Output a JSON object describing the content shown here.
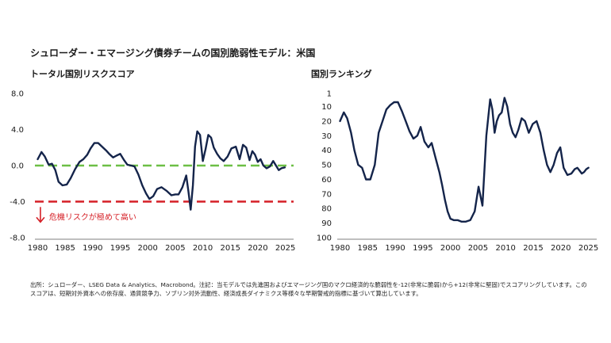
{
  "title": "シュローダー・エマージング債券チームの国別脆弱性モデル：米国",
  "source": [
    "出所：シュローダー、LSEG Data & Analytics、Macrobond。注記：当モデルでは先進国およびエマージング国のマクロ経済的な脆弱性を-12(非常に脆弱)から+12(非常に堅固)でスコアリングしています。この",
    "スコアは、短期対外資本への依存度、通貨競争力、ソブリン対外流動性、経済成長ダイナミクス等様々な早期警戒的指標に基づいて算出しています。"
  ],
  "colors": {
    "line": "#14244a",
    "green_dash": "#6dbf45",
    "red_dash": "#d51f26",
    "annotation": "#d51f26"
  },
  "chart_data": [
    {
      "type": "line",
      "title": "トータル国別リスクスコア",
      "xlabel": "",
      "ylabel": "",
      "xlim": [
        1979.5,
        2026.5
      ],
      "ylim": [
        -8,
        8
      ],
      "x_ticks": [
        1980,
        1985,
        1990,
        1995,
        2000,
        2005,
        2010,
        2015,
        2020,
        2025
      ],
      "y_ticks": [
        "8.0",
        "4.0",
        "0.0",
        "-4.0",
        "-8.0"
      ],
      "y_tick_values": [
        8,
        4,
        0,
        -4,
        -8
      ],
      "reference_lines": [
        {
          "y": 0,
          "color": "#6dbf45",
          "style": "dashed"
        },
        {
          "y": -4,
          "color": "#d51f26",
          "style": "dashed"
        }
      ],
      "annotation": {
        "text": "危機リスクが極めて高い",
        "arrow": "down",
        "at_x": 1980.5,
        "at_y": -4.6
      },
      "series": [
        {
          "x": [
            1980.0,
            1980.7,
            1981.3,
            1982.0,
            1982.6,
            1983.2,
            1983.8,
            1984.5,
            1985.3,
            1986.0,
            1986.8,
            1987.6,
            1988.3,
            1989.0,
            1989.6,
            1990.3,
            1991.0,
            1991.7,
            1992.4,
            1993.0,
            1993.7,
            1994.3,
            1995.0,
            1995.7,
            1996.3,
            1997.0,
            1997.6,
            1998.3,
            1999.0,
            1999.7,
            2000.3,
            2001.0,
            2001.7,
            2002.5,
            2003.4,
            2004.3,
            2005.0,
            2005.6,
            2006.3,
            2007.0,
            2007.4,
            2007.8,
            2008.2,
            2008.6,
            2009.0,
            2009.5,
            2010.0,
            2010.5,
            2011.0,
            2011.5,
            2012.0,
            2012.6,
            2013.2,
            2013.8,
            2014.5,
            2015.2,
            2016.0,
            2016.7,
            2017.3,
            2017.9,
            2018.5,
            2019.0,
            2019.5,
            2020.0,
            2020.5,
            2021.0,
            2021.6,
            2022.2,
            2022.8,
            2023.3,
            2023.8,
            2024.3,
            2024.9
          ],
          "values": [
            0.7,
            1.5,
            1.0,
            0.1,
            0.2,
            -0.5,
            -1.8,
            -2.2,
            -2.1,
            -1.4,
            -0.4,
            0.4,
            0.7,
            1.2,
            1.9,
            2.5,
            2.5,
            2.1,
            1.7,
            1.3,
            0.9,
            1.1,
            1.3,
            0.6,
            0.1,
            0.0,
            -0.1,
            -1.0,
            -2.2,
            -3.1,
            -3.7,
            -3.4,
            -2.6,
            -2.4,
            -2.8,
            -3.3,
            -3.2,
            -3.2,
            -2.4,
            -1.1,
            -2.9,
            -4.9,
            -2.2,
            2.1,
            3.8,
            3.4,
            0.5,
            1.8,
            3.4,
            3.1,
            2.0,
            1.3,
            0.8,
            0.5,
            1.0,
            1.9,
            2.1,
            0.7,
            2.3,
            2.0,
            0.6,
            1.6,
            1.2,
            0.4,
            0.7,
            0.0,
            -0.3,
            -0.1,
            0.5,
            0.0,
            -0.5,
            -0.3,
            -0.2
          ]
        }
      ]
    },
    {
      "type": "line",
      "title": "国別ランキング",
      "xlabel": "",
      "ylabel": "",
      "xlim": [
        1979.5,
        2026.5
      ],
      "ylim": [
        1,
        100
      ],
      "y_inverted": true,
      "x_ticks": [
        1980,
        1985,
        1990,
        1995,
        2000,
        2005,
        2010,
        2015,
        2020,
        2025
      ],
      "y_ticks": [
        "1",
        "10",
        "20",
        "30",
        "40",
        "50",
        "60",
        "70",
        "80",
        "90",
        "100"
      ],
      "y_tick_values": [
        1,
        10,
        20,
        30,
        40,
        50,
        60,
        70,
        80,
        90,
        100
      ],
      "series": [
        {
          "x": [
            1980.0,
            1980.7,
            1981.3,
            1982.0,
            1982.6,
            1983.3,
            1984.0,
            1984.7,
            1985.5,
            1986.3,
            1987.0,
            1987.7,
            1988.4,
            1989.1,
            1989.8,
            1990.5,
            1991.2,
            1991.9,
            1992.6,
            1993.3,
            1994.0,
            1994.6,
            1995.3,
            1996.0,
            1996.6,
            1997.3,
            1998.0,
            1998.5,
            1999.0,
            1999.5,
            2000.0,
            2000.6,
            2001.3,
            2002.0,
            2002.8,
            2003.6,
            2004.4,
            2005.1,
            2005.8,
            2006.5,
            2007.2,
            2007.6,
            2008.0,
            2008.4,
            2008.8,
            2009.3,
            2009.8,
            2010.3,
            2010.8,
            2011.3,
            2011.8,
            2012.3,
            2012.9,
            2013.5,
            2014.2,
            2014.9,
            2015.6,
            2016.3,
            2016.9,
            2017.5,
            2018.1,
            2018.7,
            2019.3,
            2019.9,
            2020.5,
            2021.2,
            2021.9,
            2022.5,
            2023.0,
            2023.4,
            2023.8,
            2024.2,
            2024.6,
            2025.0
          ],
          "values": [
            20,
            14,
            18,
            28,
            40,
            50,
            52,
            60,
            60,
            50,
            28,
            20,
            12,
            9,
            7,
            7,
            13,
            20,
            27,
            32,
            30,
            24,
            34,
            38,
            35,
            45,
            55,
            64,
            74,
            82,
            87,
            88,
            88,
            89,
            89,
            88,
            82,
            65,
            78,
            30,
            5,
            12,
            28,
            20,
            16,
            14,
            4,
            10,
            22,
            28,
            31,
            26,
            18,
            20,
            28,
            22,
            20,
            28,
            40,
            50,
            55,
            50,
            42,
            38,
            52,
            57,
            56,
            53,
            52,
            54,
            56,
            55,
            53,
            52
          ]
        }
      ]
    }
  ]
}
